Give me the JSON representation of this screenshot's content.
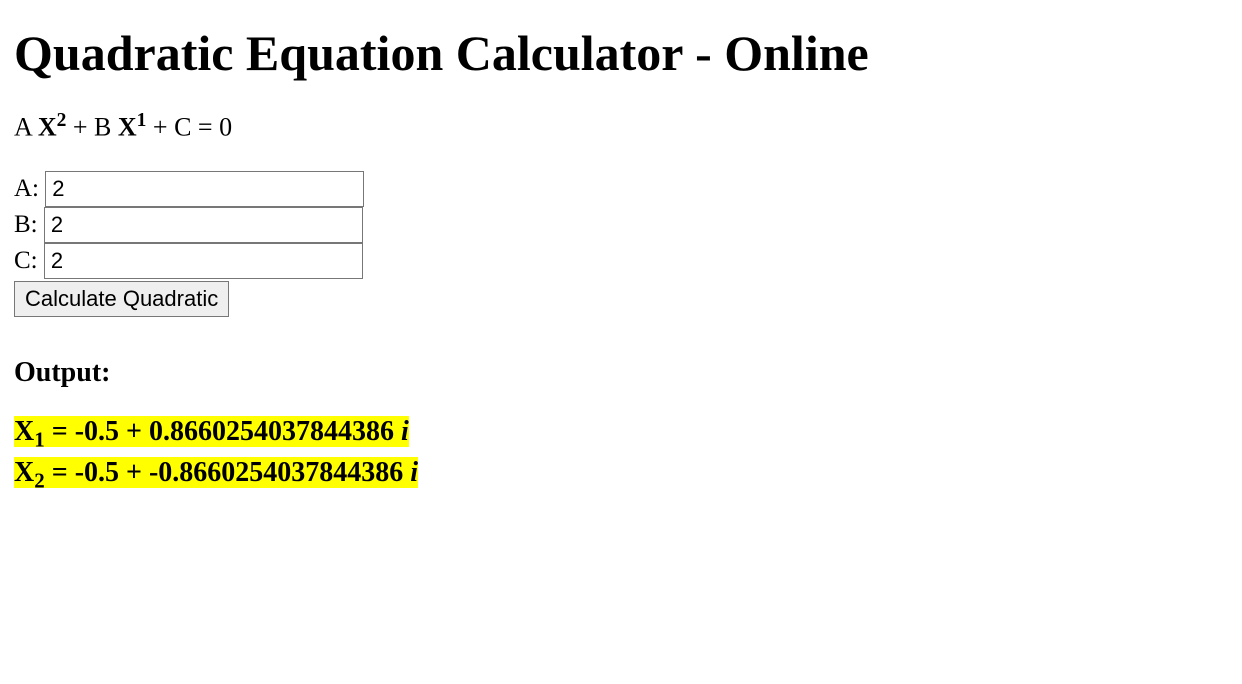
{
  "title": "Quadratic Equation Calculator - Online",
  "equation": {
    "termA": "A ",
    "x": "X",
    "exp2": "2",
    "plusB": " + B ",
    "exp1": "1",
    "plusC": " + C = 0"
  },
  "form": {
    "labelA": "A: ",
    "labelB": "B: ",
    "labelC": "C: ",
    "valueA": "2",
    "valueB": "2",
    "valueC": "2",
    "button": "Calculate Quadratic"
  },
  "output": {
    "label": "Output:",
    "root1": " = -0.5 + 0.8660254037844386 ",
    "root2": " = -0.5 + -0.8660254037844386 ",
    "sub1": "1",
    "sub2": "2",
    "xvar": "X",
    "i": "i"
  },
  "colors": {
    "highlight": "#ffff00",
    "background": "#ffffff",
    "text": "#000000",
    "input_border": "#777777",
    "button_bg": "#efefef"
  }
}
